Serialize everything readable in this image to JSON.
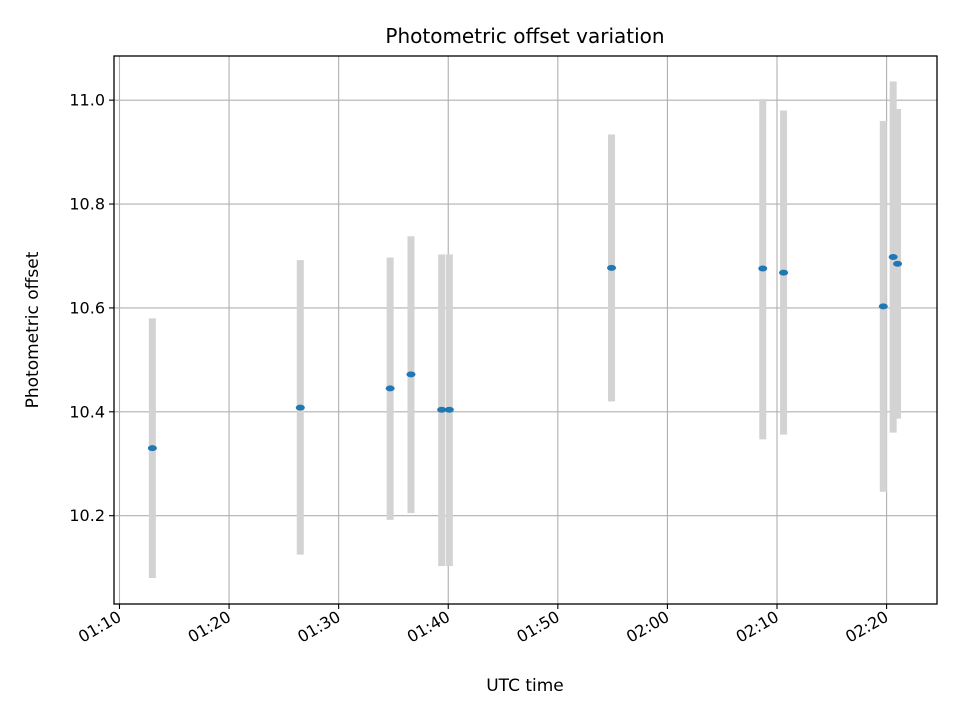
{
  "chart_data": {
    "type": "scatter",
    "title": "Photometric offset variation",
    "xlabel": "UTC time",
    "ylabel": "Photometric offset",
    "x_ticks": [
      "01:10",
      "01:20",
      "01:30",
      "01:40",
      "01:50",
      "02:00",
      "02:10",
      "02:20"
    ],
    "y_ticks": [
      "10.2",
      "10.4",
      "10.6",
      "10.8",
      "11.0"
    ],
    "xlim": [
      "01:09.5",
      "02:24.6"
    ],
    "ylim": [
      10.03,
      11.085
    ],
    "grid": true,
    "marker_color": "#1f77b4",
    "errorbar_color": "#d3d3d3",
    "points": [
      {
        "x": "01:13.0",
        "y": 10.33,
        "ymin": 10.08,
        "ymax": 10.58
      },
      {
        "x": "01:26.5",
        "y": 10.408,
        "ymin": 10.125,
        "ymax": 10.692
      },
      {
        "x": "01:34.7",
        "y": 10.445,
        "ymin": 10.192,
        "ymax": 10.697
      },
      {
        "x": "01:36.6",
        "y": 10.472,
        "ymin": 10.205,
        "ymax": 10.738
      },
      {
        "x": "01:39.4",
        "y": 10.404,
        "ymin": 10.103,
        "ymax": 10.703
      },
      {
        "x": "01:40.1",
        "y": 10.404,
        "ymin": 10.103,
        "ymax": 10.703
      },
      {
        "x": "01:54.9",
        "y": 10.677,
        "ymin": 10.42,
        "ymax": 10.934
      },
      {
        "x": "02:08.7",
        "y": 10.676,
        "ymin": 10.347,
        "ymax": 11.002
      },
      {
        "x": "02:10.6",
        "y": 10.668,
        "ymin": 10.356,
        "ymax": 10.98
      },
      {
        "x": "02:19.7",
        "y": 10.603,
        "ymin": 10.246,
        "ymax": 10.96
      },
      {
        "x": "02:20.6",
        "y": 10.698,
        "ymin": 10.36,
        "ymax": 11.036
      },
      {
        "x": "02:21.0",
        "y": 10.685,
        "ymin": 10.387,
        "ymax": 10.983
      }
    ]
  }
}
